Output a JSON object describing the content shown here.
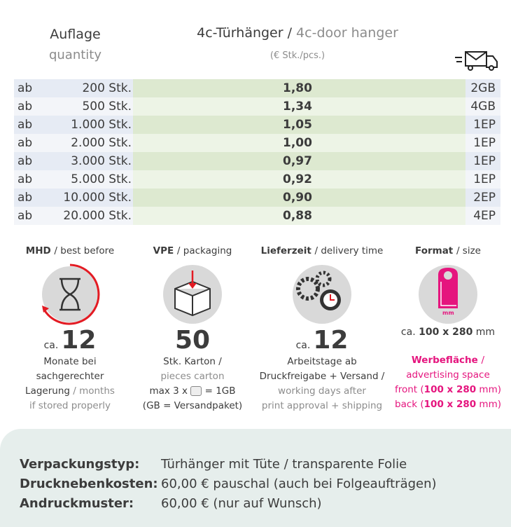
{
  "header": {
    "quantity_de": "Auflage",
    "quantity_en": "quantity",
    "product_de": "4c-Türhänger / ",
    "product_en": "4c-door hanger",
    "unit": "(€ Stk./pcs.)"
  },
  "table": {
    "rows": [
      [
        "ab",
        "200 Stk.",
        "1,80",
        "2GB"
      ],
      [
        "ab",
        "500 Stk.",
        "1,34",
        "4GB"
      ],
      [
        "ab",
        "1.000 Stk.",
        "1,05",
        "1EP"
      ],
      [
        "ab",
        "2.000 Stk.",
        "1,00",
        "1EP"
      ],
      [
        "ab",
        "3.000 Stk.",
        "0,97",
        "1EP"
      ],
      [
        "ab",
        "5.000 Stk.",
        "0,92",
        "1EP"
      ],
      [
        "ab",
        "10.000 Stk.",
        "0,90",
        "2EP"
      ],
      [
        "ab",
        "20.000 Stk.",
        "0,88",
        "4EP"
      ]
    ]
  },
  "info": [
    {
      "title": [
        {
          "text": "MHD ",
          "tone": "bold"
        },
        {
          "text": "/ best before",
          "tone": "dark"
        }
      ],
      "figure": [
        {
          "text": "ca.",
          "tone": "small"
        },
        {
          "text": "12",
          "tone": "big"
        }
      ],
      "lines": [
        [
          {
            "text": "Monate bei",
            "tone": "dark"
          }
        ],
        [
          {
            "text": "sachgerechter",
            "tone": "dark"
          }
        ],
        [
          {
            "text": "Lagerung ",
            "tone": "dark"
          },
          {
            "text": "/ months",
            "tone": "light"
          }
        ],
        [
          {
            "text": "if stored properly",
            "tone": "light"
          }
        ]
      ]
    },
    {
      "title": [
        {
          "text": "VPE ",
          "tone": "bold"
        },
        {
          "text": "/ packaging",
          "tone": "dark"
        }
      ],
      "figure": [
        {
          "text": "50",
          "tone": "big"
        }
      ],
      "lines": [
        [
          {
            "text": "Stk. Karton /",
            "tone": "dark"
          }
        ],
        [
          {
            "text": "pieces carton",
            "tone": "light"
          }
        ],
        [
          {
            "text": "max 3 x ",
            "tone": "dark"
          },
          {
            "icon": "box"
          },
          {
            "text": " = 1GB",
            "tone": "dark"
          }
        ],
        [
          {
            "text": "(GB = Versandpaket)",
            "tone": "dark"
          }
        ]
      ]
    },
    {
      "title": [
        {
          "text": "Lieferzeit ",
          "tone": "bold"
        },
        {
          "text": "/ delivery time",
          "tone": "dark"
        }
      ],
      "figure": [
        {
          "text": "ca.",
          "tone": "small"
        },
        {
          "text": "12",
          "tone": "big"
        }
      ],
      "lines": [
        [
          {
            "text": "Arbeitstage ab",
            "tone": "dark"
          }
        ],
        [
          {
            "text": "Druckfreigabe + Versand /",
            "tone": "dark"
          }
        ],
        [
          {
            "text": "working days after",
            "tone": "light"
          }
        ],
        [
          {
            "text": "print approval + shipping",
            "tone": "light"
          }
        ]
      ]
    },
    {
      "title": [
        {
          "text": "Format ",
          "tone": "bold"
        },
        {
          "text": "/ size",
          "tone": "dark"
        }
      ],
      "icon_label": "mm",
      "figure": [
        {
          "text": "ca. ",
          "tone": "dark"
        },
        {
          "text": "100 x 280",
          "tone": "bold"
        },
        {
          "text": " mm",
          "tone": "dark"
        }
      ],
      "lines": [
        [
          {
            "text": "Werbefläche ",
            "tone": "pinkbold"
          },
          {
            "text": "/",
            "tone": "pink"
          }
        ],
        [
          {
            "text": "advertising space",
            "tone": "pink"
          }
        ],
        [
          {
            "text": "front (",
            "tone": "pink"
          },
          {
            "text": "100 x 280",
            "tone": "pinkbold"
          },
          {
            "text": " mm)",
            "tone": "pink"
          }
        ],
        [
          {
            "text": "back (",
            "tone": "pink"
          },
          {
            "text": "100 x 280",
            "tone": "pinkbold"
          },
          {
            "text": " mm)",
            "tone": "pink"
          }
        ]
      ]
    }
  ],
  "footer": {
    "rows": [
      [
        "Verpackungstyp:",
        "Türhänger mit Tüte / transparente Folie"
      ],
      [
        "Drucknebenkosten:",
        "60,00 € pauschal (auch bei Folgeaufträgen)"
      ],
      [
        "Andruckmuster:",
        "60,00 € (nur auf Wunsch)"
      ]
    ]
  }
}
